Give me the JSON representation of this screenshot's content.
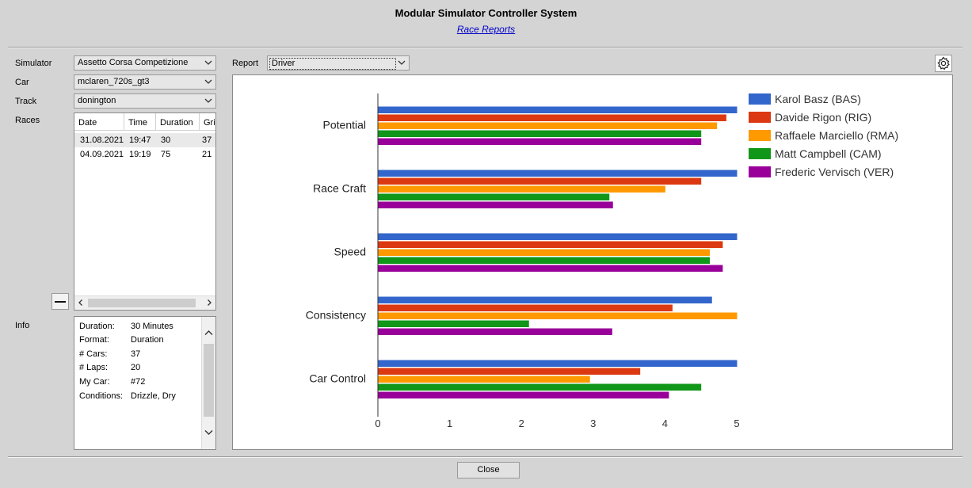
{
  "header": {
    "title": "Modular Simulator Controller System",
    "link": "Race Reports"
  },
  "labels": {
    "simulator": "Simulator",
    "car": "Car",
    "track": "Track",
    "races": "Races",
    "info": "Info",
    "report": "Report"
  },
  "selectors": {
    "simulator": "Assetto Corsa Competizione",
    "car": "mclaren_720s_gt3",
    "track": "donington",
    "report": "Driver"
  },
  "races": {
    "columns": [
      "Date",
      "Time",
      "Duration",
      "Grid"
    ],
    "rows": [
      [
        "31.08.2021",
        "19:47",
        "30",
        "37"
      ],
      [
        "04.09.2021",
        "19:19",
        "75",
        "21"
      ]
    ]
  },
  "info": [
    {
      "key": "Duration:",
      "value": "30 Minutes"
    },
    {
      "key": "Format:",
      "value": "Duration"
    },
    {
      "key": "# Cars:",
      "value": "37"
    },
    {
      "key": "# Laps:",
      "value": "20"
    },
    {
      "key": "My Car:",
      "value": "#72"
    },
    {
      "key": "Conditions:",
      "value": "Drizzle, Dry"
    }
  ],
  "footer": {
    "close": "Close"
  },
  "colors": {
    "BAS": "#3366cc",
    "RIG": "#dc3912",
    "RMA": "#ff9900",
    "CAM": "#109618",
    "VER": "#990099"
  },
  "chart_data": {
    "type": "bar",
    "orientation": "horizontal",
    "categories": [
      "Potential",
      "Race Craft",
      "Speed",
      "Consistency",
      "Car Control"
    ],
    "series": [
      {
        "name": "Karol Basz (BAS)",
        "color": "#3366cc",
        "values": [
          5.0,
          5.0,
          5.0,
          4.65,
          5.0
        ]
      },
      {
        "name": "Davide Rigon (RIG)",
        "color": "#dc3912",
        "values": [
          4.85,
          4.5,
          4.8,
          4.1,
          3.65
        ]
      },
      {
        "name": "Raffaele Marciello (RMA)",
        "color": "#ff9900",
        "values": [
          4.72,
          4.0,
          4.62,
          5.0,
          2.95
        ]
      },
      {
        "name": "Matt Campbell (CAM)",
        "color": "#109618",
        "values": [
          4.5,
          3.22,
          4.62,
          2.1,
          4.5
        ]
      },
      {
        "name": "Frederic Vervisch (VER)",
        "color": "#990099",
        "values": [
          4.5,
          3.27,
          4.8,
          3.26,
          4.05
        ]
      }
    ],
    "xlim": [
      0,
      5
    ],
    "xticks": [
      "0",
      "1",
      "2",
      "3",
      "4",
      "5"
    ],
    "legend": "top-right",
    "grid": false
  }
}
